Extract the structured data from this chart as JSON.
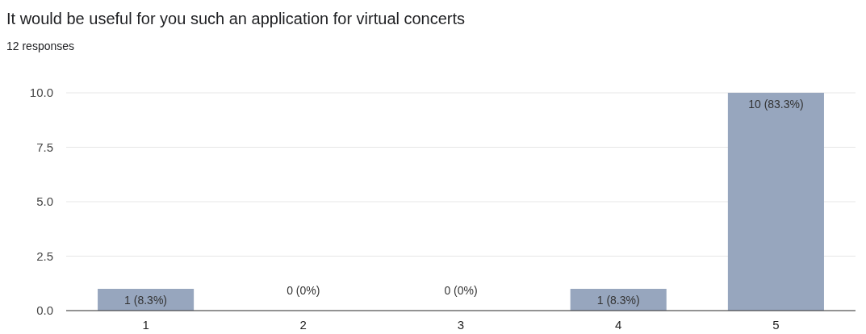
{
  "chart_data": {
    "type": "bar",
    "title": "It would be useful for you such an application for virtual concerts",
    "subtitle": "12 responses",
    "categories": [
      "1",
      "2",
      "3",
      "4",
      "5"
    ],
    "values": [
      1,
      0,
      0,
      1,
      10
    ],
    "value_labels": [
      "1 (8.3%)",
      "0 (0%)",
      "0 (0%)",
      "1 (8.3%)",
      "10 (83.3%)"
    ],
    "color": "#97a6be",
    "ylim": [
      0,
      10
    ],
    "yticks": [
      {
        "value": 0,
        "label": "0.0"
      },
      {
        "value": 2.5,
        "label": "2.5"
      },
      {
        "value": 5,
        "label": "5.0"
      },
      {
        "value": 7.5,
        "label": "7.5"
      },
      {
        "value": 10,
        "label": "10.0"
      }
    ],
    "grid": "y"
  }
}
